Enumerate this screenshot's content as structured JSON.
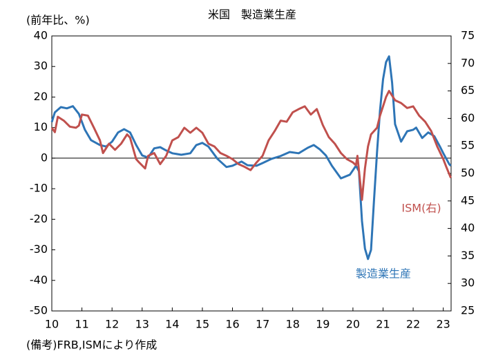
{
  "chart_data": {
    "type": "line",
    "title": "米国　製造業生産",
    "y_label": "(前年比、%)",
    "source": "(備考)FRB,ISMにより作成",
    "xlim": [
      2010,
      2023.26
    ],
    "xticks": [
      {
        "value": 2010,
        "label": "10"
      },
      {
        "value": 2011,
        "label": "11"
      },
      {
        "value": 2012,
        "label": "12"
      },
      {
        "value": 2013,
        "label": "13"
      },
      {
        "value": 2014,
        "label": "14"
      },
      {
        "value": 2015,
        "label": "15"
      },
      {
        "value": 2016,
        "label": "16"
      },
      {
        "value": 2017,
        "label": "17"
      },
      {
        "value": 2018,
        "label": "18"
      },
      {
        "value": 2019,
        "label": "19"
      },
      {
        "value": 2020,
        "label": "20"
      },
      {
        "value": 2021,
        "label": "21"
      },
      {
        "value": 2022,
        "label": "22"
      },
      {
        "value": 2023,
        "label": "23"
      }
    ],
    "ylim": [
      -50,
      40
    ],
    "yticks": [
      -50,
      -40,
      -30,
      -20,
      -10,
      0,
      10,
      20,
      30,
      40
    ],
    "y2lim": [
      25,
      75
    ],
    "y2ticks": [
      25,
      30,
      35,
      40,
      45,
      50,
      55,
      60,
      65,
      70,
      75
    ],
    "series": [
      {
        "name": "製造業生産",
        "color": "#2e75b6",
        "x": [
          2010.0,
          2010.1,
          2010.3,
          2010.5,
          2010.7,
          2010.9,
          2011.1,
          2011.3,
          2011.6,
          2011.8,
          2012.0,
          2012.2,
          2012.4,
          2012.6,
          2012.8,
          2013.0,
          2013.2,
          2013.4,
          2013.6,
          2013.8,
          2014.0,
          2014.3,
          2014.6,
          2014.8,
          2015.0,
          2015.2,
          2015.5,
          2015.8,
          2016.0,
          2016.3,
          2016.5,
          2016.8,
          2017.0,
          2017.3,
          2017.6,
          2017.9,
          2018.2,
          2018.5,
          2018.7,
          2018.9,
          2019.1,
          2019.3,
          2019.6,
          2019.9,
          2020.1,
          2020.2,
          2020.3,
          2020.4,
          2020.5,
          2020.6,
          2020.7,
          2020.8,
          2020.9,
          2021.0,
          2021.1,
          2021.2,
          2021.3,
          2021.4,
          2021.6,
          2021.8,
          2022.0,
          2022.1,
          2022.3,
          2022.5,
          2022.7,
          2022.9,
          2023.0,
          2023.2,
          2023.25
        ],
        "values": [
          11.8,
          15,
          16.7,
          16.3,
          17,
          14.5,
          9.3,
          5.9,
          4.3,
          3.8,
          5.4,
          8.4,
          9.5,
          8.4,
          4.3,
          0.9,
          0.2,
          3.2,
          3.6,
          2.5,
          1.6,
          1.1,
          1.6,
          4.3,
          5,
          3.8,
          -0.2,
          -2.9,
          -2.5,
          -1.1,
          -2.3,
          -2.5,
          -1.6,
          -0.2,
          0.7,
          2,
          1.6,
          3.4,
          4.3,
          2.9,
          0.9,
          -2.5,
          -6.6,
          -5.4,
          -2.5,
          -4.3,
          -20.6,
          -29.6,
          -33,
          -30,
          -13.8,
          2,
          15.6,
          25.8,
          31.4,
          33.3,
          24.7,
          11.1,
          5.4,
          8.8,
          9.3,
          10,
          6.6,
          8.4,
          7.2,
          3.6,
          1.6,
          -2,
          -2.5
        ]
      },
      {
        "name": "ISM",
        "color": "#c0504d",
        "axis": "y2",
        "x": [
          2010.0,
          2010.1,
          2010.2,
          2010.4,
          2010.6,
          2010.8,
          2010.9,
          2011.0,
          2011.2,
          2011.4,
          2011.6,
          2011.7,
          2011.9,
          2012.1,
          2012.3,
          2012.5,
          2012.6,
          2012.8,
          2012.9,
          2013.1,
          2013.2,
          2013.4,
          2013.6,
          2013.8,
          2014.0,
          2014.2,
          2014.4,
          2014.6,
          2014.8,
          2015.0,
          2015.2,
          2015.4,
          2015.6,
          2015.8,
          2016.0,
          2016.2,
          2016.4,
          2016.6,
          2016.8,
          2017.0,
          2017.2,
          2017.4,
          2017.6,
          2017.8,
          2018.0,
          2018.2,
          2018.4,
          2018.6,
          2018.8,
          2019.0,
          2019.2,
          2019.4,
          2019.6,
          2019.8,
          2020.0,
          2020.1,
          2020.15,
          2020.3,
          2020.4,
          2020.5,
          2020.6,
          2020.8,
          2020.9,
          2021.0,
          2021.1,
          2021.2,
          2021.4,
          2021.6,
          2021.8,
          2022.0,
          2022.2,
          2022.4,
          2022.6,
          2022.8,
          2023.0,
          2023.1,
          2023.25
        ],
        "values": [
          58.3,
          57.5,
          60.3,
          59.6,
          58.5,
          58.3,
          58.7,
          60.7,
          60.5,
          58.3,
          56,
          53.7,
          55.4,
          54.3,
          55.4,
          57.1,
          56.5,
          52.6,
          52,
          50.9,
          53.2,
          53.7,
          51.7,
          53.2,
          56,
          56.6,
          58.3,
          57.4,
          58.3,
          57.4,
          55.4,
          54.9,
          53.7,
          53.2,
          52.6,
          51.7,
          51.2,
          50.6,
          52,
          53.2,
          56,
          57.7,
          59.6,
          59.4,
          61.1,
          61.7,
          62.2,
          60.7,
          61.7,
          58.8,
          56.6,
          55.4,
          53.7,
          52.6,
          52,
          51.5,
          53.2,
          45.2,
          50.9,
          54.9,
          57.1,
          58.3,
          60.5,
          62.2,
          63.9,
          65,
          63.3,
          62.8,
          61.9,
          62.2,
          60.5,
          59.4,
          57.7,
          54.9,
          52.6,
          51.2,
          49.2
        ]
      }
    ],
    "annotations": [
      {
        "text": "ISM(右)",
        "color": "#c0504d"
      },
      {
        "text": "製造業生産",
        "color": "#2e75b6"
      }
    ]
  }
}
